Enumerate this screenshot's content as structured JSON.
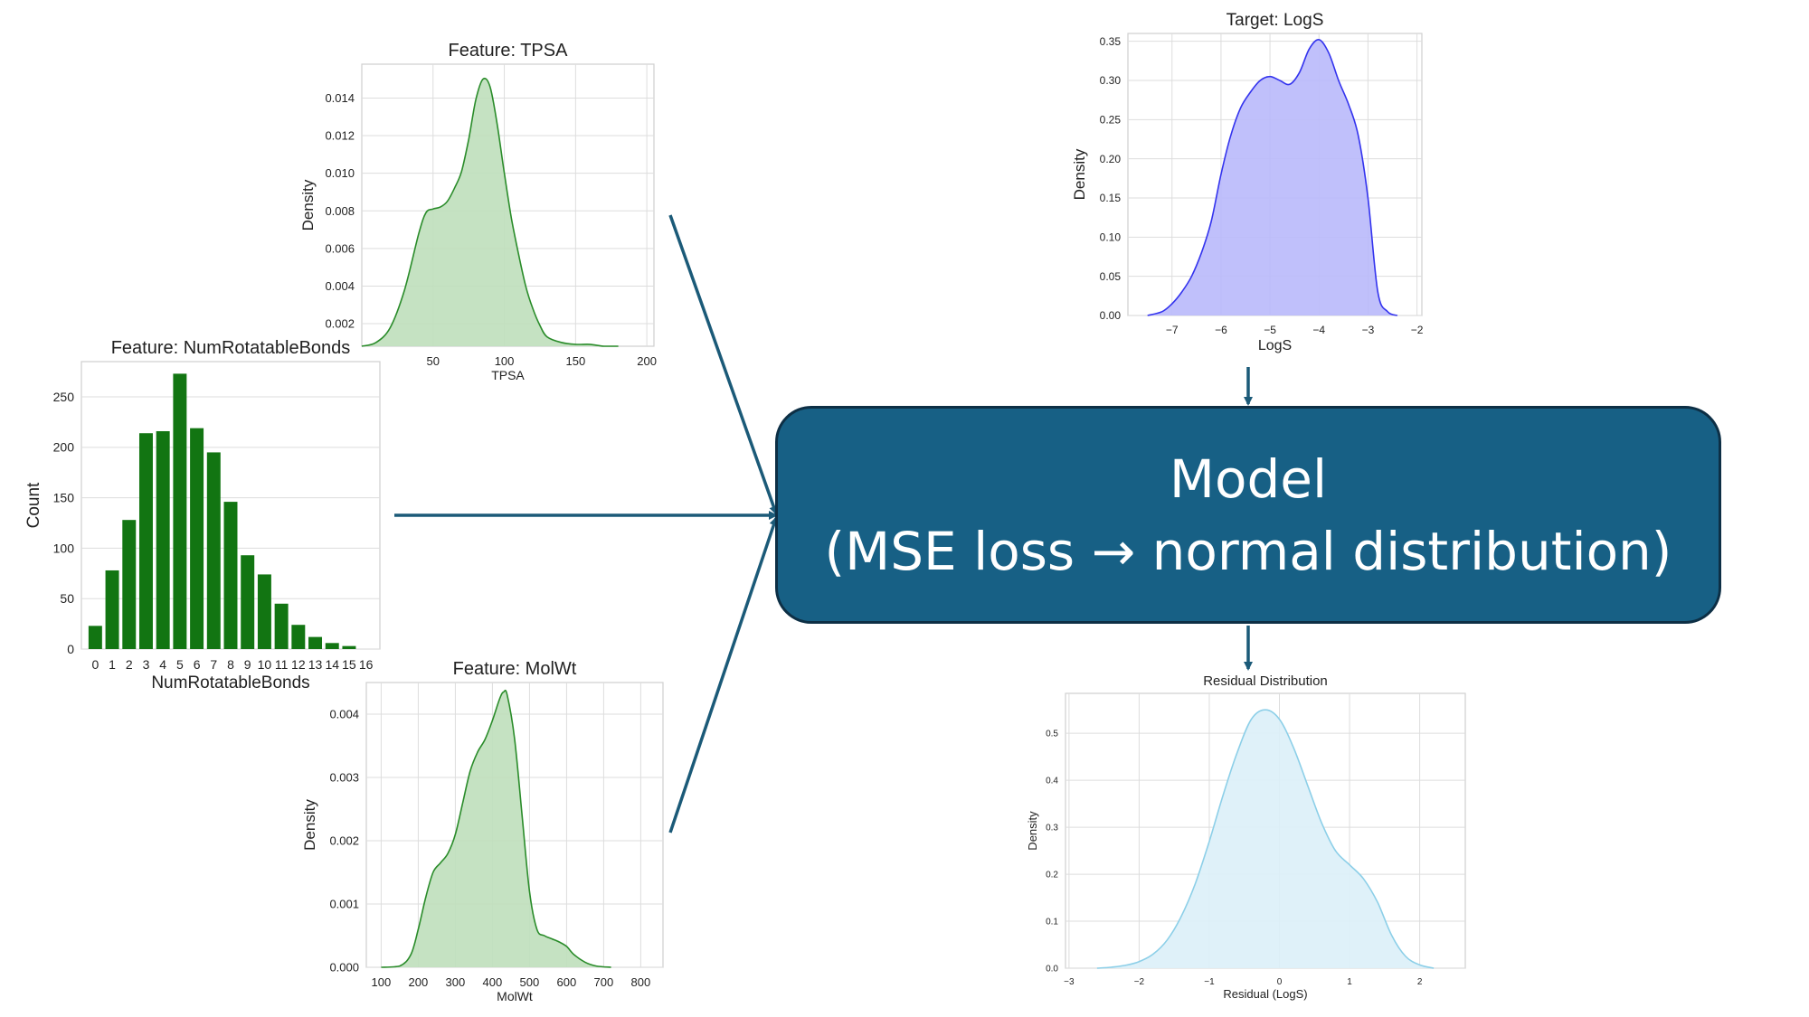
{
  "model": {
    "title": "Model",
    "subtitle": "(MSE loss → normal distribution)"
  },
  "colors": {
    "feature": "#2a8c2a",
    "feature_fill": "#bfdfbb",
    "bar": "#127512",
    "target": "#3333ee",
    "target_fill": "#b9b9fb",
    "residual": "#8ccfe8",
    "residual_fill": "#dcf0f8",
    "arrow": "#1b5a78",
    "model_box": "#176085"
  },
  "chart_data": [
    {
      "id": "tpsa",
      "type": "area",
      "title": "Feature: TPSA",
      "xlabel": "TPSA",
      "ylabel": "Density",
      "xlim": [
        0,
        205
      ],
      "ylim": [
        0.0008,
        0.0158
      ],
      "xticks": [
        50,
        100,
        150,
        200
      ],
      "yticks": [
        0.002,
        0.004,
        0.006,
        0.008,
        0.01,
        0.012,
        0.014
      ],
      "ytick_labels": [
        "0.002",
        "0.004",
        "0.006",
        "0.008",
        "0.010",
        "0.012",
        "0.014"
      ],
      "x": [
        0,
        10,
        20,
        30,
        40,
        45,
        50,
        55,
        60,
        65,
        70,
        75,
        80,
        85,
        90,
        95,
        100,
        105,
        110,
        115,
        120,
        125,
        130,
        140,
        150,
        160,
        170,
        180
      ],
      "y": [
        0.0008,
        0.001,
        0.0018,
        0.0038,
        0.0068,
        0.0079,
        0.0081,
        0.0082,
        0.0085,
        0.0092,
        0.0101,
        0.0118,
        0.0139,
        0.015,
        0.0146,
        0.0126,
        0.01,
        0.0076,
        0.0057,
        0.004,
        0.0028,
        0.0019,
        0.0013,
        0.001,
        0.0009,
        0.0009,
        0.0008,
        0.0008
      ]
    },
    {
      "id": "rotatable",
      "type": "bar",
      "title": "Feature: NumRotatableBonds",
      "xlabel": "NumRotatableBonds",
      "ylabel": "Count",
      "ylim": [
        0,
        285
      ],
      "yticks": [
        0,
        50,
        100,
        150,
        200,
        250
      ],
      "categories": [
        "0",
        "1",
        "2",
        "3",
        "4",
        "5",
        "6",
        "7",
        "8",
        "9",
        "10",
        "11",
        "12",
        "13",
        "14",
        "15",
        "16"
      ],
      "values": [
        23,
        78,
        128,
        214,
        216,
        273,
        219,
        195,
        146,
        93,
        74,
        45,
        24,
        12,
        6,
        3,
        0
      ]
    },
    {
      "id": "molwt",
      "type": "area",
      "title": "Feature: MolWt",
      "xlabel": "MolWt",
      "ylabel": "Density",
      "xlim": [
        60,
        860
      ],
      "ylim": [
        0,
        0.0045
      ],
      "xticks": [
        100,
        200,
        300,
        400,
        500,
        600,
        700,
        800
      ],
      "yticks": [
        0,
        0.001,
        0.002,
        0.003,
        0.004
      ],
      "ytick_labels": [
        "0.000",
        "0.001",
        "0.002",
        "0.003",
        "0.004"
      ],
      "x": [
        100,
        150,
        180,
        200,
        220,
        240,
        260,
        280,
        300,
        320,
        340,
        360,
        380,
        400,
        420,
        430,
        440,
        460,
        480,
        500,
        520,
        540,
        560,
        580,
        600,
        620,
        650,
        680,
        720
      ],
      "y": [
        0,
        2e-05,
        0.0002,
        0.0006,
        0.0011,
        0.0015,
        0.00165,
        0.0018,
        0.0021,
        0.0026,
        0.0031,
        0.0034,
        0.0036,
        0.0039,
        0.00425,
        0.00435,
        0.0043,
        0.0036,
        0.0024,
        0.0012,
        0.0006,
        0.0005,
        0.00045,
        0.0004,
        0.00033,
        0.0002,
        8e-05,
        2e-05,
        0
      ]
    },
    {
      "id": "logs",
      "type": "area",
      "title": "Target: LogS",
      "xlabel": "LogS",
      "ylabel": "Density",
      "xlim": [
        -7.9,
        -1.9
      ],
      "ylim": [
        0,
        0.36
      ],
      "xticks": [
        -7,
        -6,
        -5,
        -4,
        -3,
        -2
      ],
      "xtick_labels": [
        "−7",
        "−6",
        "−5",
        "−4",
        "−3",
        "−2"
      ],
      "yticks": [
        0,
        0.05,
        0.1,
        0.15,
        0.2,
        0.25,
        0.3,
        0.35
      ],
      "ytick_labels": [
        "0.00",
        "0.05",
        "0.10",
        "0.15",
        "0.20",
        "0.25",
        "0.30",
        "0.35"
      ],
      "x": [
        -7.5,
        -7.2,
        -7.0,
        -6.8,
        -6.6,
        -6.4,
        -6.2,
        -6.0,
        -5.8,
        -5.6,
        -5.4,
        -5.2,
        -5.0,
        -4.8,
        -4.6,
        -4.4,
        -4.2,
        -4.0,
        -3.8,
        -3.6,
        -3.4,
        -3.2,
        -3.0,
        -2.8,
        -2.6,
        -2.4
      ],
      "y": [
        0.0,
        0.005,
        0.015,
        0.03,
        0.05,
        0.08,
        0.12,
        0.18,
        0.23,
        0.265,
        0.285,
        0.3,
        0.305,
        0.3,
        0.295,
        0.31,
        0.34,
        0.352,
        0.335,
        0.3,
        0.27,
        0.23,
        0.15,
        0.03,
        0.005,
        0.0
      ]
    },
    {
      "id": "residual",
      "type": "area",
      "title": "Residual Distribution",
      "xlabel": "Residual (LogS)",
      "ylabel": "Density",
      "xlim": [
        -3.05,
        2.65
      ],
      "ylim": [
        0,
        0.585
      ],
      "xticks": [
        -3,
        -2,
        -1,
        0,
        1,
        2
      ],
      "xtick_labels": [
        "−3",
        "−2",
        "−1",
        "0",
        "1",
        "2"
      ],
      "yticks": [
        0,
        0.1,
        0.2,
        0.3,
        0.4,
        0.5
      ],
      "ytick_labels": [
        "0.0",
        "0.1",
        "0.2",
        "0.3",
        "0.4",
        "0.5"
      ],
      "x": [
        -2.6,
        -2.4,
        -2.2,
        -2.0,
        -1.8,
        -1.6,
        -1.4,
        -1.2,
        -1.0,
        -0.8,
        -0.6,
        -0.4,
        -0.2,
        0.0,
        0.2,
        0.4,
        0.6,
        0.8,
        1.0,
        1.2,
        1.4,
        1.6,
        1.8,
        2.0,
        2.2
      ],
      "y": [
        0.0,
        0.002,
        0.006,
        0.014,
        0.03,
        0.06,
        0.11,
        0.18,
        0.27,
        0.37,
        0.46,
        0.53,
        0.55,
        0.53,
        0.47,
        0.39,
        0.31,
        0.25,
        0.22,
        0.19,
        0.14,
        0.07,
        0.025,
        0.007,
        0.0
      ]
    }
  ]
}
